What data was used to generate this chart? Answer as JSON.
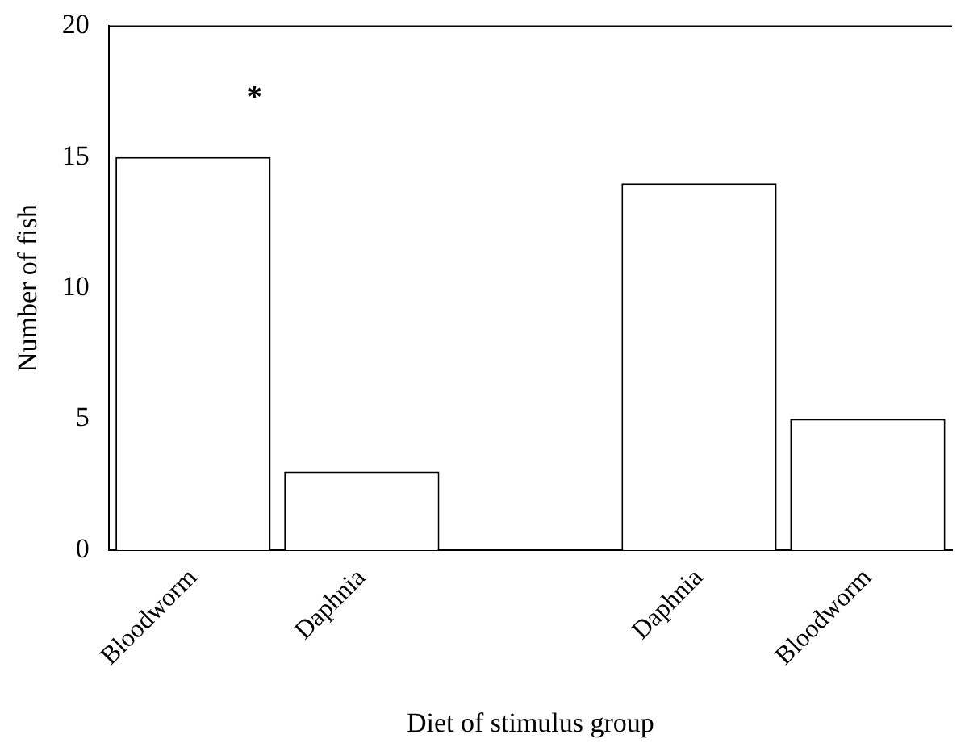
{
  "chart_data": {
    "type": "bar",
    "xlabel": "Diet of stimulus group",
    "ylabel": "Number of fish",
    "categories": [
      "Bloodworm",
      "Daphnia",
      null,
      "Daphnia",
      "Bloodworm"
    ],
    "values": [
      15,
      3,
      null,
      14,
      5
    ],
    "colors": [
      "#ffffff",
      "#ffffff",
      "#ffffff",
      "#ffffff",
      "#ffffff"
    ],
    "ylim": [
      0,
      20
    ],
    "yticks": [
      0,
      5,
      10,
      15,
      20
    ],
    "grid": false,
    "legend": false,
    "annotations": [
      "*"
    ]
  }
}
